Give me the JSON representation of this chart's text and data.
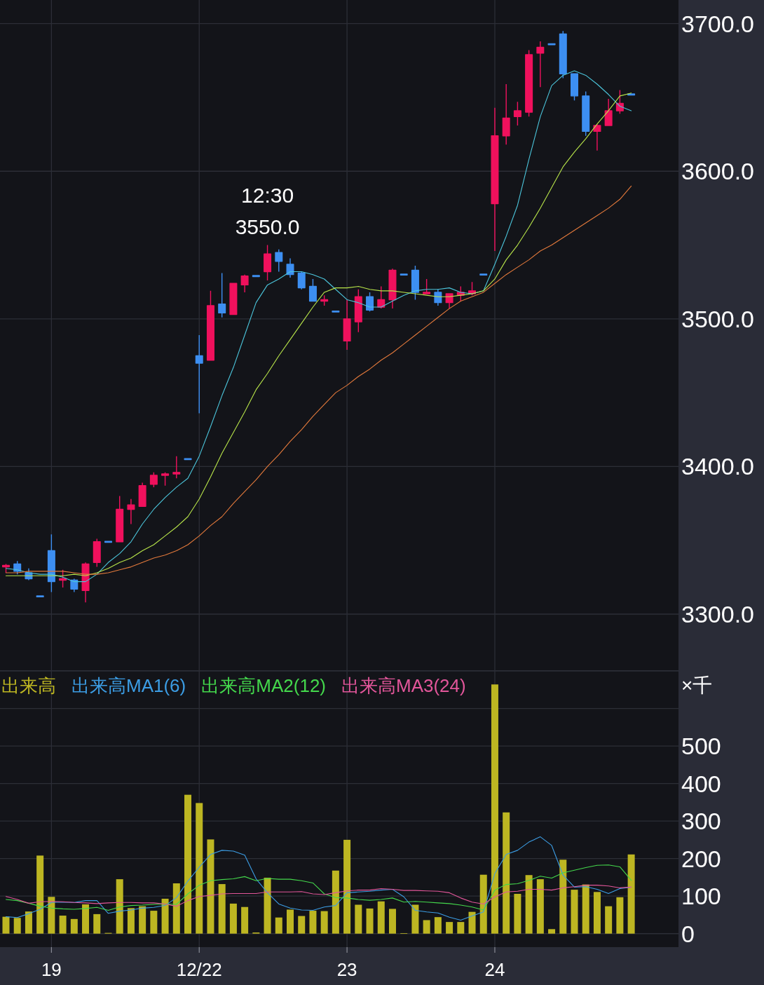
{
  "chart_data": [
    {
      "type": "candlestick",
      "categories": [
        null,
        null,
        null,
        null,
        null,
        null,
        null,
        null,
        null,
        null,
        null,
        null,
        null,
        null,
        null,
        null,
        null,
        null,
        null,
        null,
        null,
        null,
        null,
        null,
        null,
        null,
        null,
        null,
        null,
        null,
        null,
        null,
        null,
        null,
        null,
        null,
        null,
        null,
        null,
        null,
        null,
        null,
        null,
        null,
        null,
        null,
        null,
        null,
        null,
        null,
        null,
        null,
        null,
        null,
        null,
        null
      ],
      "ohlc": [
        [
          3332,
          3334,
          3328,
          3333
        ],
        [
          3334,
          3336,
          3327,
          3329
        ],
        [
          3328,
          3331,
          3323,
          3324
        ],
        [
          3312,
          3312,
          3312,
          3312
        ],
        [
          3343,
          3354,
          3315,
          3322
        ],
        [
          3323,
          3330,
          3318,
          3324
        ],
        [
          3323,
          3324,
          3315,
          3317
        ],
        [
          3316,
          3335,
          3308,
          3334
        ],
        [
          3335,
          3351,
          3332,
          3349
        ],
        [
          3349,
          3349,
          3349,
          3349
        ],
        [
          3349,
          3380,
          3349,
          3371
        ],
        [
          3371,
          3378,
          3361,
          3374
        ],
        [
          3373,
          3389,
          3373,
          3387
        ],
        [
          3388,
          3396,
          3386,
          3394
        ],
        [
          3394,
          3396,
          3387,
          3395
        ],
        [
          3395,
          3407,
          3392,
          3396
        ],
        [
          3405,
          3405,
          3405,
          3405
        ],
        [
          3475,
          3489,
          3436,
          3470
        ],
        [
          3472,
          3519,
          3472,
          3509
        ],
        [
          3510,
          3531,
          3501,
          3504
        ],
        [
          3503,
          3524,
          3503,
          3524
        ],
        [
          3523,
          3530,
          3518,
          3529
        ],
        [
          3529,
          3529,
          3529,
          3529
        ],
        [
          3532,
          3550,
          3526,
          3544
        ],
        [
          3545,
          3547,
          3532,
          3539
        ],
        [
          3537,
          3541,
          3528,
          3530
        ],
        [
          3531,
          3532,
          3520,
          3521
        ],
        [
          3522,
          3527,
          3512,
          3512
        ],
        [
          3512,
          3516,
          3509,
          3513
        ],
        [
          3505,
          3505,
          3505,
          3505
        ],
        [
          3485,
          3513,
          3479,
          3500
        ],
        [
          3498,
          3520,
          3491,
          3515
        ],
        [
          3515,
          3518,
          3505,
          3506
        ],
        [
          3508,
          3522,
          3507,
          3513
        ],
        [
          3513,
          3534,
          3507,
          3533
        ],
        [
          3530,
          3530,
          3530,
          3530
        ],
        [
          3533,
          3536,
          3513,
          3518
        ],
        [
          3517,
          3527,
          3517,
          3518
        ],
        [
          3518,
          3520,
          3509,
          3511
        ],
        [
          3511,
          3517,
          3507,
          3517
        ],
        [
          3516,
          3522,
          3512,
          3518
        ],
        [
          3517,
          3525,
          3516,
          3519
        ],
        [
          3530,
          3530,
          3530,
          3530
        ],
        [
          3578,
          3643,
          3546,
          3624
        ],
        [
          3624,
          3659,
          3618,
          3636
        ],
        [
          3637,
          3647,
          3631,
          3641
        ],
        [
          3640,
          3682,
          3637,
          3679
        ],
        [
          3680,
          3688,
          3657,
          3684
        ],
        [
          3686,
          3686,
          3686,
          3686
        ],
        [
          3693,
          3695,
          3663,
          3666
        ],
        [
          3666,
          3666,
          3648,
          3651
        ],
        [
          3651,
          3654,
          3624,
          3627
        ],
        [
          3627,
          3632,
          3614,
          3631
        ],
        [
          3631,
          3649,
          3631,
          3641
        ],
        [
          3641,
          3655,
          3639,
          3646
        ],
        [
          3652,
          3652,
          3652,
          3652
        ]
      ],
      "colors": [
        "#f0115d",
        "#3d8ff2",
        "#3d8ff2",
        "#3d8ff2",
        "#3d8ff2",
        "#f0115d",
        "#3d8ff2",
        "#f0115d",
        "#f0115d",
        "#3d8ff2",
        "#f0115d",
        "#f0115d",
        "#f0115d",
        "#f0115d",
        "#f0115d",
        "#f0115d",
        "#3d8ff2",
        "#3d8ff2",
        "#f0115d",
        "#3d8ff2",
        "#f0115d",
        "#f0115d",
        "#3d8ff2",
        "#f0115d",
        "#3d8ff2",
        "#3d8ff2",
        "#3d8ff2",
        "#3d8ff2",
        "#f0115d",
        "#3d8ff2",
        "#f0115d",
        "#f0115d",
        "#3d8ff2",
        "#f0115d",
        "#f0115d",
        "#3d8ff2",
        "#3d8ff2",
        "#f0115d",
        "#3d8ff2",
        "#f0115d",
        "#f0115d",
        "#f0115d",
        "#3d8ff2",
        "#f0115d",
        "#f0115d",
        "#f0115d",
        "#f0115d",
        "#f0115d",
        "#3d8ff2",
        "#3d8ff2",
        "#3d8ff2",
        "#3d8ff2",
        "#f0115d",
        "#f0115d",
        "#f0115d",
        "#3d8ff2"
      ],
      "series": [
        {
          "type": "line",
          "color": "#4cc6dc",
          "values": [
            3331,
            3330,
            3328,
            3327,
            3327,
            3325,
            3322,
            3322,
            3327,
            3335,
            3341,
            3349,
            3361,
            3371,
            3379,
            3386,
            3392,
            3407,
            3427,
            3448,
            3467,
            3489,
            3511,
            3523,
            3527,
            3532,
            3532,
            3530,
            3527,
            3520,
            3513,
            3511,
            3508,
            3508,
            3512,
            3516,
            3519,
            3520,
            3520,
            3521,
            3518,
            3517,
            3519,
            3537,
            3556,
            3577,
            3608,
            3637,
            3658,
            3665,
            3668,
            3665,
            3659,
            3652,
            3644,
            3641
          ]
        },
        {
          "type": "line",
          "color": "#b9e64a",
          "values": [
            3326,
            3326,
            3326,
            3326,
            3326,
            3326,
            3327,
            3326,
            3328,
            3331,
            3335,
            3338,
            3343,
            3347,
            3353,
            3359,
            3366,
            3378,
            3393,
            3409,
            3423,
            3437,
            3452,
            3463,
            3475,
            3486,
            3497,
            3508,
            3518,
            3521,
            3521,
            3522,
            3520,
            3519,
            3519,
            3518,
            3517,
            3516,
            3515,
            3515,
            3516,
            3517,
            3519,
            3527,
            3540,
            3550,
            3562,
            3575,
            3589,
            3603,
            3613,
            3622,
            3632,
            3641,
            3651,
            3653
          ]
        },
        {
          "type": "line",
          "color": "#e47a3c",
          "values": [
            3328,
            3328,
            3329,
            3329,
            3329,
            3329,
            3328,
            3327,
            3327,
            3328,
            3330,
            3332,
            3335,
            3338,
            3340,
            3343,
            3347,
            3353,
            3360,
            3366,
            3375,
            3383,
            3391,
            3400,
            3408,
            3417,
            3425,
            3434,
            3442,
            3450,
            3455,
            3461,
            3466,
            3472,
            3477,
            3483,
            3489,
            3495,
            3501,
            3507,
            3512,
            3515,
            3518,
            3524,
            3530,
            3535,
            3540,
            3546,
            3550,
            3555,
            3560,
            3565,
            3570,
            3575,
            3581,
            3590
          ]
        }
      ],
      "ylim": [
        3262,
        3716
      ],
      "yticks": [
        {
          "value": 3300,
          "label": "3300.0"
        },
        {
          "value": 3400,
          "label": "3400.0"
        },
        {
          "value": 3500,
          "label": "3500.0"
        },
        {
          "value": 3600,
          "label": "3600.0"
        },
        {
          "value": 3700,
          "label": "3700.0"
        }
      ],
      "grid": true,
      "tick_labels": "y",
      "annotations": [
        {
          "text": "12:30",
          "y": 3550
        },
        {
          "text": "3550.0",
          "y": 3550
        }
      ]
    },
    {
      "type": "bar",
      "categories": [
        null,
        null,
        null,
        null,
        "19",
        null,
        null,
        null,
        null,
        null,
        null,
        null,
        null,
        null,
        null,
        null,
        null,
        "12/22",
        null,
        null,
        null,
        null,
        null,
        null,
        null,
        null,
        null,
        null,
        null,
        null,
        "23",
        null,
        null,
        null,
        null,
        null,
        null,
        null,
        null,
        null,
        null,
        null,
        null,
        "24",
        null,
        null,
        null,
        null,
        null,
        null,
        null,
        null,
        null,
        null,
        null,
        null
      ],
      "series": [
        {
          "name": "出来高",
          "type": "bar",
          "color": "#bdb622",
          "values": [
            45,
            42,
            59,
            208,
            98,
            48,
            39,
            78,
            52,
            2,
            145,
            68,
            73,
            61,
            93,
            134,
            370,
            348,
            251,
            132,
            80,
            71,
            3,
            149,
            43,
            64,
            47,
            61,
            60,
            168,
            250,
            77,
            67,
            86,
            66,
            1,
            77,
            36,
            44,
            31,
            31,
            58,
            157,
            664,
            323,
            106,
            156,
            145,
            12,
            197,
            117,
            131,
            111,
            73,
            97,
            211
          ]
        },
        {
          "name": "出来高MA1(6)",
          "type": "line",
          "color": "#3c9de4",
          "values": [
            45,
            43,
            53,
            65,
            83,
            84,
            83,
            88,
            88,
            54,
            60,
            63,
            68,
            70,
            75,
            96,
            140,
            177,
            211,
            222,
            220,
            209,
            146,
            109,
            79,
            68,
            63,
            62,
            71,
            75,
            109,
            111,
            113,
            116,
            118,
            98,
            62,
            58,
            55,
            44,
            36,
            47,
            58,
            160,
            211,
            222,
            244,
            258,
            235,
            156,
            124,
            125,
            118,
            107,
            120,
            124
          ]
        },
        {
          "name": "出来高MA2(12)",
          "type": "line",
          "color": "#44d84c",
          "values": [
            91,
            88,
            81,
            73,
            68,
            66,
            65,
            67,
            70,
            62,
            71,
            75,
            76,
            78,
            79,
            78,
            106,
            129,
            141,
            144,
            146,
            152,
            141,
            147,
            145,
            145,
            141,
            135,
            106,
            96,
            95,
            91,
            89,
            91,
            95,
            84,
            86,
            84,
            82,
            80,
            76,
            71,
            63,
            116,
            131,
            133,
            142,
            153,
            148,
            162,
            169,
            176,
            182,
            183,
            178,
            142
          ]
        },
        {
          "name": "出来高MA3(24)",
          "type": "line",
          "color": "#e2569a",
          "values": [
            99,
            91,
            81,
            85,
            86,
            85,
            83,
            82,
            80,
            82,
            83,
            83,
            82,
            82,
            79,
            73,
            88,
            99,
            102,
            106,
            107,
            107,
            107,
            111,
            111,
            111,
            112,
            106,
            104,
            109,
            114,
            116,
            116,
            120,
            118,
            115,
            115,
            114,
            113,
            109,
            95,
            84,
            79,
            98,
            111,
            113,
            118,
            118,
            116,
            122,
            125,
            129,
            129,
            127,
            122,
            124
          ]
        }
      ],
      "ylim": [
        -36,
        700
      ],
      "yticks": [
        0,
        100,
        200,
        300,
        400,
        500,
        {
          "value": 600,
          "label": null
        },
        {
          "value": 700,
          "label": null
        }
      ],
      "ylabel": "×千",
      "grid": true,
      "legend": "top left"
    }
  ]
}
